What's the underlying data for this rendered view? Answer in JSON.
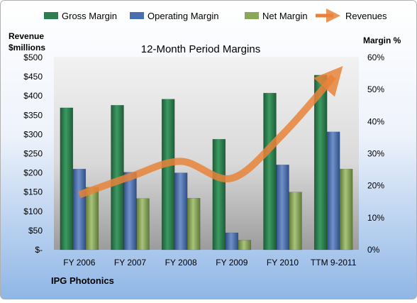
{
  "chart_data": {
    "type": "bar",
    "title": "12-Month Period Margins",
    "left_axis_title": [
      "Revenue",
      "$millions"
    ],
    "right_axis_title": "Margin %",
    "footer": "IPG Photonics",
    "categories": [
      "FY 2006",
      "FY 2007",
      "FY 2008",
      "FY 2009",
      "FY 2010",
      "TTM 9-2011"
    ],
    "left_ticks": [
      "$-",
      "$50",
      "$100",
      "$150",
      "$200",
      "$250",
      "$300",
      "$350",
      "$400",
      "$450",
      "$500"
    ],
    "right_ticks": [
      "0%",
      "10%",
      "20%",
      "30%",
      "40%",
      "50%",
      "60%"
    ],
    "ylim_left": [
      0,
      500
    ],
    "ylim_right": [
      0,
      60
    ],
    "grid": false,
    "legend_position": "top",
    "series": [
      {
        "name": "Gross Margin",
        "axis": "right",
        "unit": "%",
        "values": [
          44.3,
          45.1,
          47.0,
          34.5,
          48.9,
          54.5
        ],
        "color": "#2e7d4e"
      },
      {
        "name": "Operating Margin",
        "axis": "right",
        "unit": "%",
        "values": [
          25.2,
          24.2,
          24.0,
          5.3,
          26.5,
          36.8
        ],
        "color": "#4a6fb0"
      },
      {
        "name": "Net Margin",
        "axis": "right",
        "unit": "%",
        "values": [
          19.5,
          16.0,
          16.1,
          3.0,
          18.0,
          25.2
        ],
        "color": "#8aa85a"
      }
    ],
    "line_series": {
      "name": "Revenues",
      "axis": "left",
      "unit": "$M",
      "values": [
        143,
        190,
        230,
        186,
        300,
        450
      ],
      "color": "#e8823a"
    }
  }
}
